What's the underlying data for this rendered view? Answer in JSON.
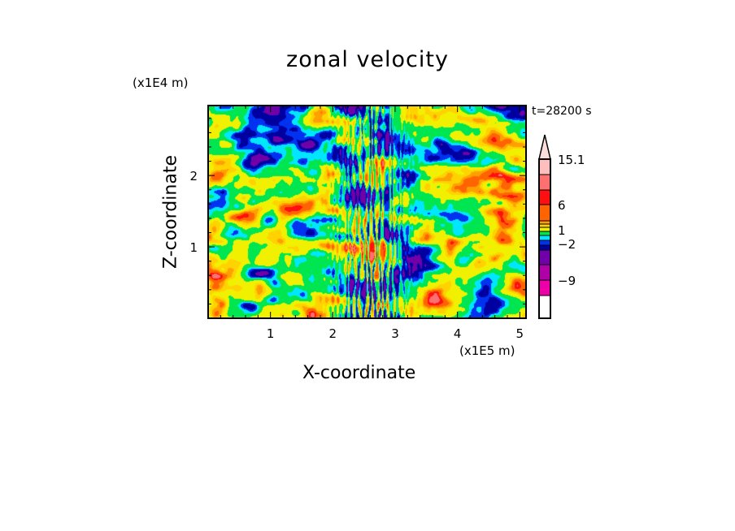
{
  "chart_data": {
    "type": "heatmap",
    "subtype": "filled-contour",
    "title": "zonal velocity",
    "xlabel": "X-coordinate",
    "ylabel": "Z-coordinate",
    "x_unit": "(x1E5 m)",
    "y_unit": "(x1E4 m)",
    "annotation": "t=28200 s",
    "xlim": [
      0,
      5.1
    ],
    "ylim": [
      0,
      2.98
    ],
    "xticks": [
      1,
      2,
      3,
      4,
      5
    ],
    "yticks": [
      1,
      2
    ],
    "xtick_labels": [
      "1",
      "2",
      "3",
      "4",
      "5"
    ],
    "ytick_labels": [
      "1",
      "2"
    ],
    "colorbar": {
      "labels": [
        "15.1",
        "6",
        "1",
        "−2",
        "−9"
      ],
      "extend": "max",
      "segments": [
        {
          "color": "#ffdcdc"
        },
        {
          "color": "#ffbebe"
        },
        {
          "color": "#ff7070"
        },
        {
          "color": "#ff1010"
        },
        {
          "color": "#ff6400"
        },
        {
          "color": "#ffa000"
        },
        {
          "color": "#ffd200"
        },
        {
          "color": "#f0f000"
        },
        {
          "color": "#00e650"
        },
        {
          "color": "#00e6ff"
        },
        {
          "color": "#0032f0"
        },
        {
          "color": "#0000a0"
        },
        {
          "color": "#7000a8"
        },
        {
          "color": "#b000a8"
        },
        {
          "color": "#ee00a8"
        }
      ]
    }
  }
}
